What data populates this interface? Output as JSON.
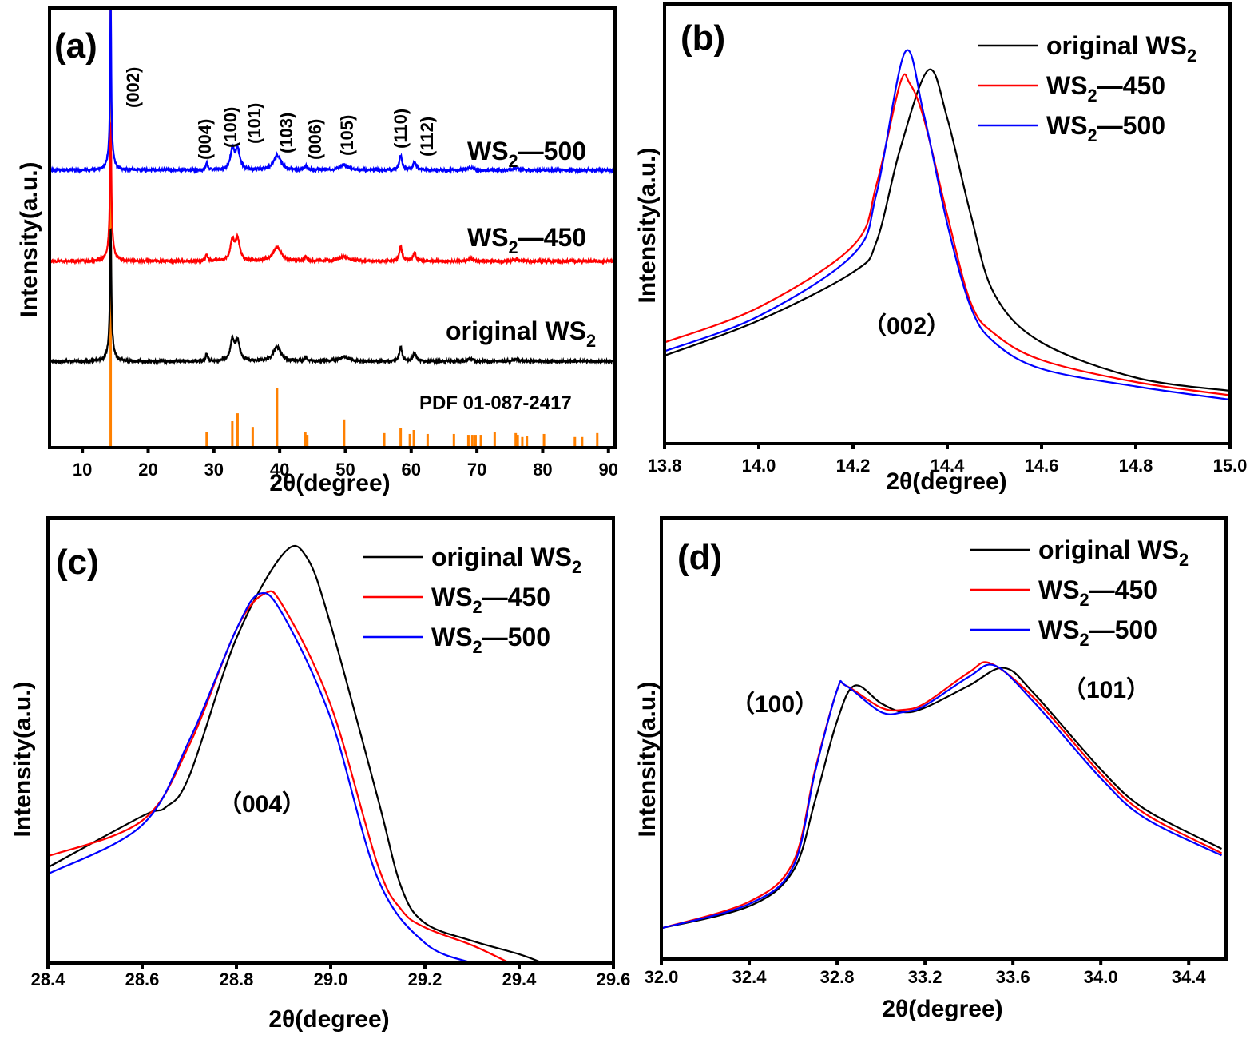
{
  "colors": {
    "original": "#000000",
    "ws2_450": "#ff0000",
    "ws2_500": "#0000ff",
    "pdf": "#ff8000"
  },
  "chart_data": [
    {
      "panel_label": "(a)",
      "type": "line",
      "xlabel": "2θ(degree)",
      "ylabel": "Intensity(a.u.)",
      "xlim": [
        5,
        91
      ],
      "ylim": [
        0,
        100
      ],
      "xticks": [
        "10",
        "20",
        "30",
        "40",
        "50",
        "60",
        "70",
        "80",
        "90"
      ],
      "xtick_values": [
        10,
        20,
        30,
        40,
        50,
        60,
        70,
        80,
        90
      ],
      "grid": false,
      "peak_labels": [
        "(002)",
        "(004)",
        "(100)",
        "(101)",
        "(103)",
        "(006)",
        "(105)",
        "(110)",
        "(112)"
      ],
      "series": [
        {
          "name": {
            "pre": "original WS",
            "sub": "2",
            "post": ""
          },
          "color_key": "original",
          "offset": 19.6,
          "peaks": [
            [
              14.3,
              26.7,
              0.12
            ],
            [
              14.3,
              4,
              0.45
            ],
            [
              28.9,
              1.5,
              0.2
            ],
            [
              32.8,
              4.5,
              0.35
            ],
            [
              33.6,
              4.5,
              0.4
            ],
            [
              39.6,
              3.3,
              0.7
            ],
            [
              44.0,
              1.0,
              0.2
            ],
            [
              49.8,
              1.1,
              0.8
            ],
            [
              58.4,
              3.3,
              0.25
            ],
            [
              60.5,
              1.8,
              0.3
            ],
            [
              69.0,
              0.5,
              0.5
            ],
            [
              76.0,
              0.5,
              0.5
            ]
          ]
        },
        {
          "name": {
            "pre": "WS",
            "sub": "2",
            "post": "—450"
          },
          "color_key": "ws2_450",
          "offset": 42.4,
          "peaks": [
            [
              14.3,
              28,
              0.12
            ],
            [
              14.3,
              4,
              0.45
            ],
            [
              28.9,
              1.5,
              0.2
            ],
            [
              32.8,
              4.5,
              0.35
            ],
            [
              33.6,
              4.8,
              0.4
            ],
            [
              39.6,
              3.3,
              0.7
            ],
            [
              44.0,
              1.0,
              0.2
            ],
            [
              49.8,
              1.1,
              0.8
            ],
            [
              58.4,
              3.3,
              0.25
            ],
            [
              60.5,
              1.8,
              0.3
            ],
            [
              69.0,
              0.5,
              0.5
            ],
            [
              76.0,
              0.5,
              0.5
            ]
          ]
        },
        {
          "name": {
            "pre": "WS",
            "sub": "2",
            "post": "—500"
          },
          "color_key": "ws2_500",
          "offset": 63.1,
          "peaks": [
            [
              14.3,
              36,
              0.1
            ],
            [
              14.3,
              4,
              0.45
            ],
            [
              28.9,
              1.5,
              0.2
            ],
            [
              32.8,
              4.5,
              0.35
            ],
            [
              33.6,
              4.5,
              0.4
            ],
            [
              39.6,
              3.3,
              0.7
            ],
            [
              44.0,
              1.0,
              0.2
            ],
            [
              49.8,
              1.1,
              0.8
            ],
            [
              58.4,
              3.3,
              0.25
            ],
            [
              60.5,
              1.8,
              0.3
            ],
            [
              69.0,
              0.5,
              0.5
            ],
            [
              76.0,
              0.5,
              0.5
            ]
          ]
        }
      ],
      "reference": {
        "label": "PDF 01-087-2417",
        "color_key": "pdf",
        "sticks": [
          [
            14.3,
            100
          ],
          [
            28.9,
            3.5
          ],
          [
            32.8,
            6.0
          ],
          [
            33.6,
            7.8
          ],
          [
            35.9,
            4.7
          ],
          [
            39.6,
            13.5
          ],
          [
            43.9,
            3.5
          ],
          [
            44.2,
            2.9
          ],
          [
            49.8,
            6.4
          ],
          [
            55.9,
            3.3
          ],
          [
            58.4,
            4.4
          ],
          [
            59.8,
            3.1
          ],
          [
            60.4,
            4.0
          ],
          [
            62.5,
            3.1
          ],
          [
            66.5,
            3.1
          ],
          [
            68.7,
            2.9
          ],
          [
            69.3,
            2.9
          ],
          [
            69.8,
            2.9
          ],
          [
            70.6,
            2.9
          ],
          [
            72.7,
            3.5
          ],
          [
            75.9,
            3.3
          ],
          [
            76.2,
            2.9
          ],
          [
            76.9,
            2.4
          ],
          [
            77.6,
            2.7
          ],
          [
            80.2,
            3.1
          ],
          [
            84.9,
            2.4
          ],
          [
            86.0,
            2.4
          ],
          [
            88.3,
            3.3
          ]
        ]
      }
    },
    {
      "panel_label": "(b)",
      "type": "line",
      "xlabel": "2θ(degree)",
      "ylabel": "Intensity(a.u.)",
      "xlim": [
        13.8,
        15.0
      ],
      "ylim": [
        0,
        100
      ],
      "xticks": [
        "13.8",
        "14.0",
        "14.2",
        "14.4",
        "14.6",
        "14.8",
        "15.0"
      ],
      "xtick_values": [
        13.8,
        14.0,
        14.2,
        14.4,
        14.6,
        14.8,
        15.0
      ],
      "grid": false,
      "annotation": "（002）",
      "legend_placement": "top-right",
      "series": [
        {
          "name": {
            "pre": "original  WS",
            "sub": "2",
            "post": ""
          },
          "color_key": "original",
          "x": [
            13.8,
            14.0,
            14.2,
            14.25,
            14.3,
            14.36,
            14.4,
            14.45,
            14.5,
            14.6,
            14.8,
            15.0
          ],
          "y": [
            20,
            28,
            39,
            46,
            67,
            85,
            74,
            52,
            34,
            23,
            15,
            12
          ]
        },
        {
          "name": {
            "pre": "WS",
            "sub": "2",
            "post": "—450"
          },
          "color_key": "ws2_450",
          "x": [
            13.8,
            14.0,
            14.2,
            14.25,
            14.3,
            14.32,
            14.35,
            14.4,
            14.45,
            14.5,
            14.6,
            14.8,
            15.0
          ],
          "y": [
            23,
            31,
            45,
            59,
            82,
            82,
            74,
            52,
            32,
            25,
            19,
            14,
            11
          ]
        },
        {
          "name": {
            "pre": "WS",
            "sub": "2",
            "post": "—500"
          },
          "color_key": "ws2_500",
          "x": [
            13.8,
            14.0,
            14.2,
            14.25,
            14.31,
            14.35,
            14.4,
            14.45,
            14.5,
            14.6,
            14.8,
            15.0
          ],
          "y": [
            21,
            29,
            43,
            57,
            89,
            75,
            50,
            31,
            23,
            17,
            13,
            10
          ]
        }
      ]
    },
    {
      "panel_label": "(c)",
      "type": "line",
      "xlabel": "2θ(degree)",
      "ylabel": "Intensity(a.u.)",
      "xlim": [
        28.4,
        29.6
      ],
      "ylim": [
        0,
        100
      ],
      "xticks": [
        "28.4",
        "28.6",
        "28.8",
        "29.0",
        "29.2",
        "29.4",
        "29.6"
      ],
      "xtick_values": [
        28.4,
        28.6,
        28.8,
        29.0,
        29.2,
        29.4,
        29.6
      ],
      "grid": false,
      "annotation": "（004）",
      "legend_placement": "top-right",
      "series": [
        {
          "name": {
            "pre": "original  WS",
            "sub": "2",
            "post": ""
          },
          "color_key": "original",
          "x": [
            28.4,
            28.6,
            28.65,
            28.7,
            28.8,
            28.9,
            28.95,
            29.0,
            29.1,
            29.15,
            29.2,
            29.3,
            29.4,
            29.45
          ],
          "y": [
            21.5,
            33,
            35,
            42,
            73,
            92,
            91,
            76,
            37,
            17,
            9,
            5,
            2,
            0
          ]
        },
        {
          "name": {
            "pre": "WS",
            "sub": "2",
            "post": "—450"
          },
          "color_key": "ws2_450",
          "x": [
            28.4,
            28.6,
            28.7,
            28.8,
            28.86,
            28.9,
            29.0,
            29.1,
            29.15,
            29.2,
            29.3,
            29.38
          ],
          "y": [
            24,
            32,
            49,
            75,
            83,
            80,
            58,
            22,
            12,
            8,
            4,
            0
          ]
        },
        {
          "name": {
            "pre": "WS",
            "sub": "2",
            "post": "—500"
          },
          "color_key": "ws2_500",
          "x": [
            28.4,
            28.6,
            28.7,
            28.8,
            28.85,
            28.9,
            29.0,
            29.1,
            29.2,
            29.3
          ],
          "y": [
            20,
            31,
            50,
            75,
            83,
            78,
            55,
            19,
            4.5,
            0
          ]
        }
      ]
    },
    {
      "panel_label": "(d)",
      "type": "line",
      "xlabel": "2θ(degree)",
      "ylabel": "Intensity(a.u.)",
      "xlim": [
        32.0,
        34.57
      ],
      "ylim": [
        0,
        100
      ],
      "xticks": [
        "32.0",
        "32.4",
        "32.8",
        "33.2",
        "33.6",
        "34.0",
        "34.4"
      ],
      "xtick_values": [
        32.0,
        32.4,
        32.8,
        33.2,
        33.6,
        34.0,
        34.4
      ],
      "grid": false,
      "annotations": [
        "（100）",
        "（101）"
      ],
      "legend_placement": "top-right",
      "series": [
        {
          "name": {
            "pre": "original  WS",
            "sub": "2",
            "post": ""
          },
          "color_key": "original",
          "x": [
            32.0,
            32.4,
            32.6,
            32.7,
            32.8,
            32.88,
            33.0,
            33.1,
            33.2,
            33.4,
            33.56,
            33.7,
            34.0,
            34.2,
            34.55
          ],
          "y": [
            7,
            12,
            20,
            36,
            54,
            62,
            58,
            56,
            57,
            62,
            66,
            60,
            43,
            34,
            25
          ]
        },
        {
          "name": {
            "pre": "WS",
            "sub": "2",
            "post": "—450"
          },
          "color_key": "ws2_450",
          "x": [
            32.0,
            32.4,
            32.6,
            32.7,
            32.8,
            32.84,
            33.0,
            33.1,
            33.2,
            33.4,
            33.5,
            33.7,
            34.0,
            34.2,
            34.55
          ],
          "y": [
            7,
            13,
            22,
            43,
            61,
            62,
            57,
            56.5,
            58,
            65,
            67,
            59,
            42,
            33,
            24
          ]
        },
        {
          "name": {
            "pre": "WS",
            "sub": "2",
            "post": "—500"
          },
          "color_key": "ws2_500",
          "x": [
            32.0,
            32.4,
            32.6,
            32.7,
            32.8,
            32.84,
            33.0,
            33.1,
            33.2,
            33.4,
            33.52,
            33.7,
            34.0,
            34.2,
            34.55
          ],
          "y": [
            7,
            12.5,
            21,
            42.5,
            61,
            62,
            56,
            56,
            57.5,
            64,
            66.5,
            58,
            41,
            32,
            23.5
          ]
        }
      ]
    }
  ]
}
